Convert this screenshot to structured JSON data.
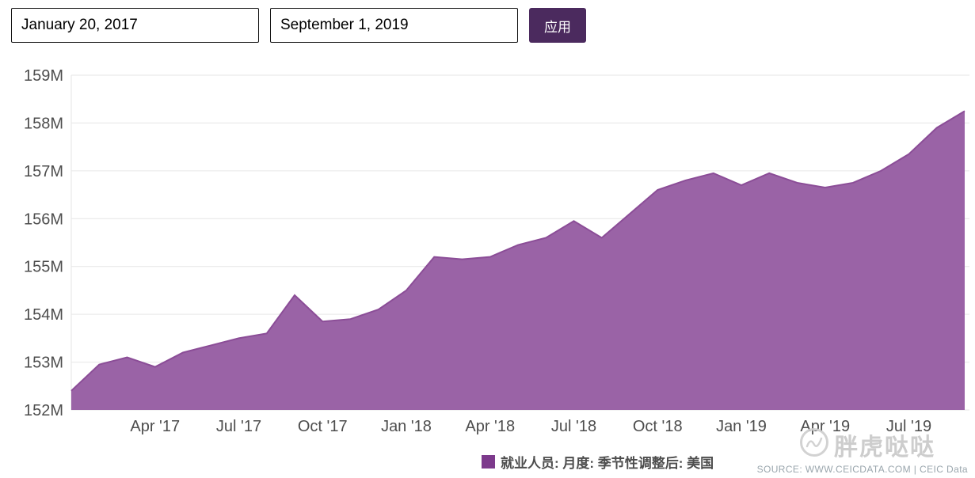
{
  "controls": {
    "start_date": "January 20, 2017",
    "end_date": "September 1, 2019",
    "apply_label": "应用"
  },
  "chart_data": {
    "type": "area",
    "title": "",
    "xlabel": "",
    "ylabel": "",
    "series_name": "就业人员: 月度: 季节性调整后: 美国",
    "x": [
      "2017-01",
      "2017-02",
      "2017-03",
      "2017-04",
      "2017-05",
      "2017-06",
      "2017-07",
      "2017-08",
      "2017-09",
      "2017-10",
      "2017-11",
      "2017-12",
      "2018-01",
      "2018-02",
      "2018-03",
      "2018-04",
      "2018-05",
      "2018-06",
      "2018-07",
      "2018-08",
      "2018-09",
      "2018-10",
      "2018-11",
      "2018-12",
      "2019-01",
      "2019-02",
      "2019-03",
      "2019-04",
      "2019-05",
      "2019-06",
      "2019-07",
      "2019-08",
      "2019-09"
    ],
    "values": [
      152.4,
      152.95,
      153.1,
      152.9,
      153.2,
      153.35,
      153.5,
      153.6,
      154.4,
      153.85,
      153.9,
      154.1,
      154.5,
      155.2,
      155.15,
      155.2,
      155.45,
      155.6,
      155.95,
      155.6,
      156.1,
      156.6,
      156.8,
      156.95,
      156.7,
      156.95,
      156.75,
      156.65,
      156.75,
      157.0,
      157.35,
      157.9,
      158.25
    ],
    "x_tick_labels": [
      {
        "index": 3,
        "label": "Apr '17"
      },
      {
        "index": 6,
        "label": "Jul '17"
      },
      {
        "index": 9,
        "label": "Oct '17"
      },
      {
        "index": 12,
        "label": "Jan '18"
      },
      {
        "index": 15,
        "label": "Apr '18"
      },
      {
        "index": 18,
        "label": "Jul '18"
      },
      {
        "index": 21,
        "label": "Oct '18"
      },
      {
        "index": 24,
        "label": "Jan '19"
      },
      {
        "index": 27,
        "label": "Apr '19"
      },
      {
        "index": 30,
        "label": "Jul '19"
      }
    ],
    "ylim": [
      152,
      159
    ],
    "y_tick_suffix": "M",
    "grid": true,
    "legend_position": "bottom",
    "fill_color": "#9a63a6",
    "line_color": "#8b4d97",
    "grid_color": "#e6e6e6",
    "axis_text_color": "#4d4d4d"
  },
  "legend": {
    "marker_color": "#7d3a8c"
  },
  "watermark": {
    "text": "胖虎哒哒"
  },
  "source": {
    "text": "SOURCE: WWW.CEICDATA.COM | CEIC Data"
  }
}
